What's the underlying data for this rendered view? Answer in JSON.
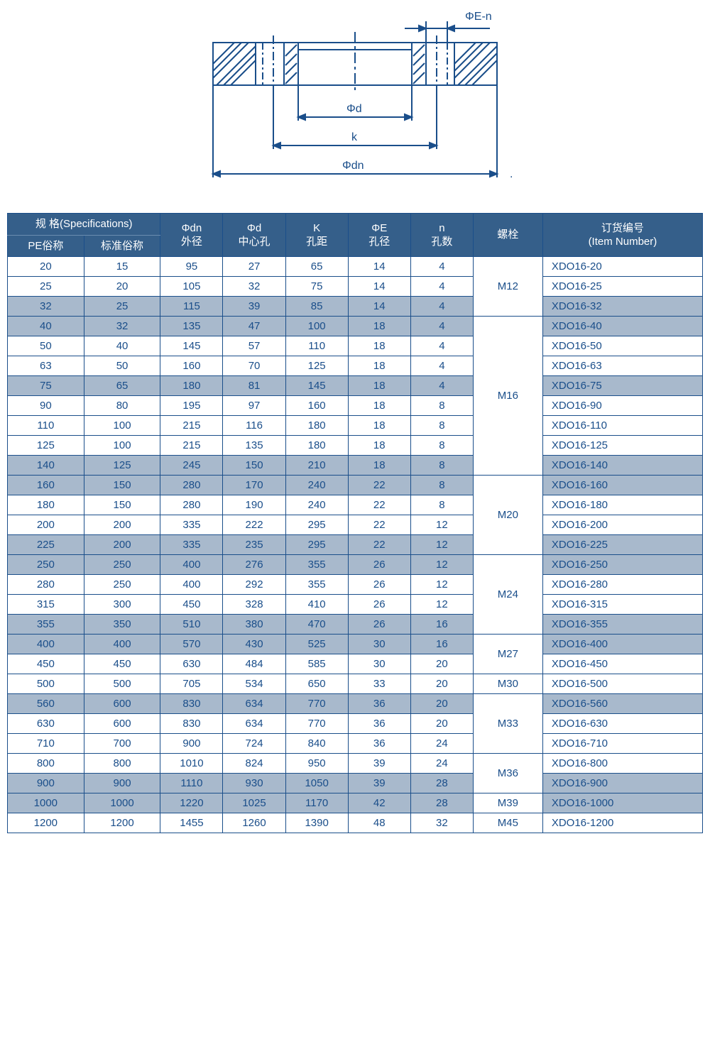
{
  "diagram": {
    "labels": {
      "en": "ΦE-n",
      "d": "Φd",
      "k": "k",
      "dn": "Φdn"
    },
    "stroke": "#1a4e8a",
    "stroke_width": 2
  },
  "headers": {
    "spec_group": "规 格(Specifications)",
    "pe": "PE俗称",
    "std": "标准俗称",
    "dn_l1": "Φdn",
    "dn_l2": "外径",
    "d_l1": "Φd",
    "d_l2": "中心孔",
    "k_l1": "K",
    "k_l2": "孔距",
    "e_l1": "ΦE",
    "e_l2": "孔径",
    "n_l1": "n",
    "n_l2": "孔数",
    "bolt": "螺栓",
    "item_l1": "订货编号",
    "item_l2": "(Item Number)"
  },
  "shade_color": "#a8b9cc",
  "border_color": "#1a4e8a",
  "rows": [
    {
      "pe": "20",
      "std": "15",
      "dn": "95",
      "d": "27",
      "k": "65",
      "e": "14",
      "n": "4",
      "item": "XDO16-20",
      "shade": false,
      "bolt": "M12",
      "bolt_span": 3
    },
    {
      "pe": "25",
      "std": "20",
      "dn": "105",
      "d": "32",
      "k": "75",
      "e": "14",
      "n": "4",
      "item": "XDO16-25",
      "shade": false
    },
    {
      "pe": "32",
      "std": "25",
      "dn": "115",
      "d": "39",
      "k": "85",
      "e": "14",
      "n": "4",
      "item": "XDO16-32",
      "shade": true
    },
    {
      "pe": "40",
      "std": "32",
      "dn": "135",
      "d": "47",
      "k": "100",
      "e": "18",
      "n": "4",
      "item": "XDO16-40",
      "shade": true,
      "bolt": "M16",
      "bolt_span": 8
    },
    {
      "pe": "50",
      "std": "40",
      "dn": "145",
      "d": "57",
      "k": "110",
      "e": "18",
      "n": "4",
      "item": "XDO16-50",
      "shade": false
    },
    {
      "pe": "63",
      "std": "50",
      "dn": "160",
      "d": "70",
      "k": "125",
      "e": "18",
      "n": "4",
      "item": "XDO16-63",
      "shade": false
    },
    {
      "pe": "75",
      "std": "65",
      "dn": "180",
      "d": "81",
      "k": "145",
      "e": "18",
      "n": "4",
      "item": "XDO16-75",
      "shade": true
    },
    {
      "pe": "90",
      "std": "80",
      "dn": "195",
      "d": "97",
      "k": "160",
      "e": "18",
      "n": "8",
      "item": "XDO16-90",
      "shade": false
    },
    {
      "pe": "110",
      "std": "100",
      "dn": "215",
      "d": "116",
      "k": "180",
      "e": "18",
      "n": "8",
      "item": "XDO16-110",
      "shade": false
    },
    {
      "pe": "125",
      "std": "100",
      "dn": "215",
      "d": "135",
      "k": "180",
      "e": "18",
      "n": "8",
      "item": "XDO16-125",
      "shade": false
    },
    {
      "pe": "140",
      "std": "125",
      "dn": "245",
      "d": "150",
      "k": "210",
      "e": "18",
      "n": "8",
      "item": "XDO16-140",
      "shade": true
    },
    {
      "pe": "160",
      "std": "150",
      "dn": "280",
      "d": "170",
      "k": "240",
      "e": "22",
      "n": "8",
      "item": "XDO16-160",
      "shade": true,
      "bolt": "M20",
      "bolt_span": 4
    },
    {
      "pe": "180",
      "std": "150",
      "dn": "280",
      "d": "190",
      "k": "240",
      "e": "22",
      "n": "8",
      "item": "XDO16-180",
      "shade": false
    },
    {
      "pe": "200",
      "std": "200",
      "dn": "335",
      "d": "222",
      "k": "295",
      "e": "22",
      "n": "12",
      "item": "XDO16-200",
      "shade": false
    },
    {
      "pe": "225",
      "std": "200",
      "dn": "335",
      "d": "235",
      "k": "295",
      "e": "22",
      "n": "12",
      "item": "XDO16-225",
      "shade": true
    },
    {
      "pe": "250",
      "std": "250",
      "dn": "400",
      "d": "276",
      "k": "355",
      "e": "26",
      "n": "12",
      "item": "XDO16-250",
      "shade": true,
      "bolt": "M24",
      "bolt_span": 4
    },
    {
      "pe": "280",
      "std": "250",
      "dn": "400",
      "d": "292",
      "k": "355",
      "e": "26",
      "n": "12",
      "item": "XDO16-280",
      "shade": false
    },
    {
      "pe": "315",
      "std": "300",
      "dn": "450",
      "d": "328",
      "k": "410",
      "e": "26",
      "n": "12",
      "item": "XDO16-315",
      "shade": false
    },
    {
      "pe": "355",
      "std": "350",
      "dn": "510",
      "d": "380",
      "k": "470",
      "e": "26",
      "n": "16",
      "item": "XDO16-355",
      "shade": true
    },
    {
      "pe": "400",
      "std": "400",
      "dn": "570",
      "d": "430",
      "k": "525",
      "e": "30",
      "n": "16",
      "item": "XDO16-400",
      "shade": true,
      "bolt": "M27",
      "bolt_span": 2
    },
    {
      "pe": "450",
      "std": "450",
      "dn": "630",
      "d": "484",
      "k": "585",
      "e": "30",
      "n": "20",
      "item": "XDO16-450",
      "shade": false
    },
    {
      "pe": "500",
      "std": "500",
      "dn": "705",
      "d": "534",
      "k": "650",
      "e": "33",
      "n": "20",
      "item": "XDO16-500",
      "shade": false,
      "bolt": "M30",
      "bolt_span": 1
    },
    {
      "pe": "560",
      "std": "600",
      "dn": "830",
      "d": "634",
      "k": "770",
      "e": "36",
      "n": "20",
      "item": "XDO16-560",
      "shade": true,
      "bolt": "M33",
      "bolt_span": 3
    },
    {
      "pe": "630",
      "std": "600",
      "dn": "830",
      "d": "634",
      "k": "770",
      "e": "36",
      "n": "20",
      "item": "XDO16-630",
      "shade": false
    },
    {
      "pe": "710",
      "std": "700",
      "dn": "900",
      "d": "724",
      "k": "840",
      "e": "36",
      "n": "24",
      "item": "XDO16-710",
      "shade": false
    },
    {
      "pe": "800",
      "std": "800",
      "dn": "1010",
      "d": "824",
      "k": "950",
      "e": "39",
      "n": "24",
      "item": "XDO16-800",
      "shade": false,
      "bolt": "M36",
      "bolt_span": 2
    },
    {
      "pe": "900",
      "std": "900",
      "dn": "1110",
      "d": "930",
      "k": "1050",
      "e": "39",
      "n": "28",
      "item": "XDO16-900",
      "shade": true
    },
    {
      "pe": "1000",
      "std": "1000",
      "dn": "1220",
      "d": "1025",
      "k": "1170",
      "e": "42",
      "n": "28",
      "item": "XDO16-1000",
      "shade": true,
      "bolt": "M39",
      "bolt_span": 1
    },
    {
      "pe": "1200",
      "std": "1200",
      "dn": "1455",
      "d": "1260",
      "k": "1390",
      "e": "48",
      "n": "32",
      "item": "XDO16-1200",
      "shade": false,
      "bolt": "M45",
      "bolt_span": 1
    }
  ]
}
